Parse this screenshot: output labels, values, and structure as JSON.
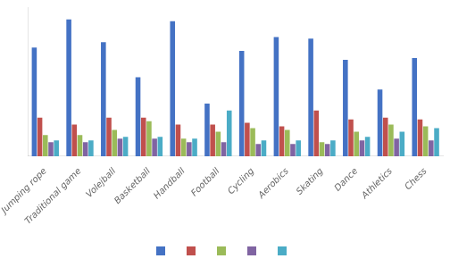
{
  "chart_data": {
    "type": "bar",
    "categories": [
      "Jumping rope",
      "Traditional game",
      "Volejball",
      "Basketball",
      "Handball",
      "Football",
      "Cycling",
      "Aerobics",
      "Skating",
      "Dance",
      "Athletics",
      "Chess"
    ],
    "series": [
      {
        "color": "#4472C4",
        "values": [
          62,
          78,
          65,
          45,
          77,
          30,
          60,
          68,
          67,
          55,
          38,
          56
        ]
      },
      {
        "color": "#C0504D",
        "values": [
          22,
          18,
          22,
          22,
          18,
          18,
          19,
          17,
          26,
          21,
          22,
          21
        ]
      },
      {
        "color": "#9BBB59",
        "values": [
          12,
          12,
          15,
          20,
          10,
          14,
          16,
          15,
          8,
          14,
          18,
          17
        ]
      },
      {
        "color": "#8064A2",
        "values": [
          8,
          8,
          10,
          10,
          8,
          8,
          7,
          7,
          7,
          9,
          10,
          9
        ]
      },
      {
        "color": "#4BACC6",
        "values": [
          9,
          9,
          11,
          11,
          10,
          26,
          9,
          9,
          9,
          11,
          14,
          16
        ]
      }
    ],
    "ylim": [
      0,
      85
    ],
    "grid": false,
    "legend": "bottom",
    "tick_labels": "x"
  }
}
